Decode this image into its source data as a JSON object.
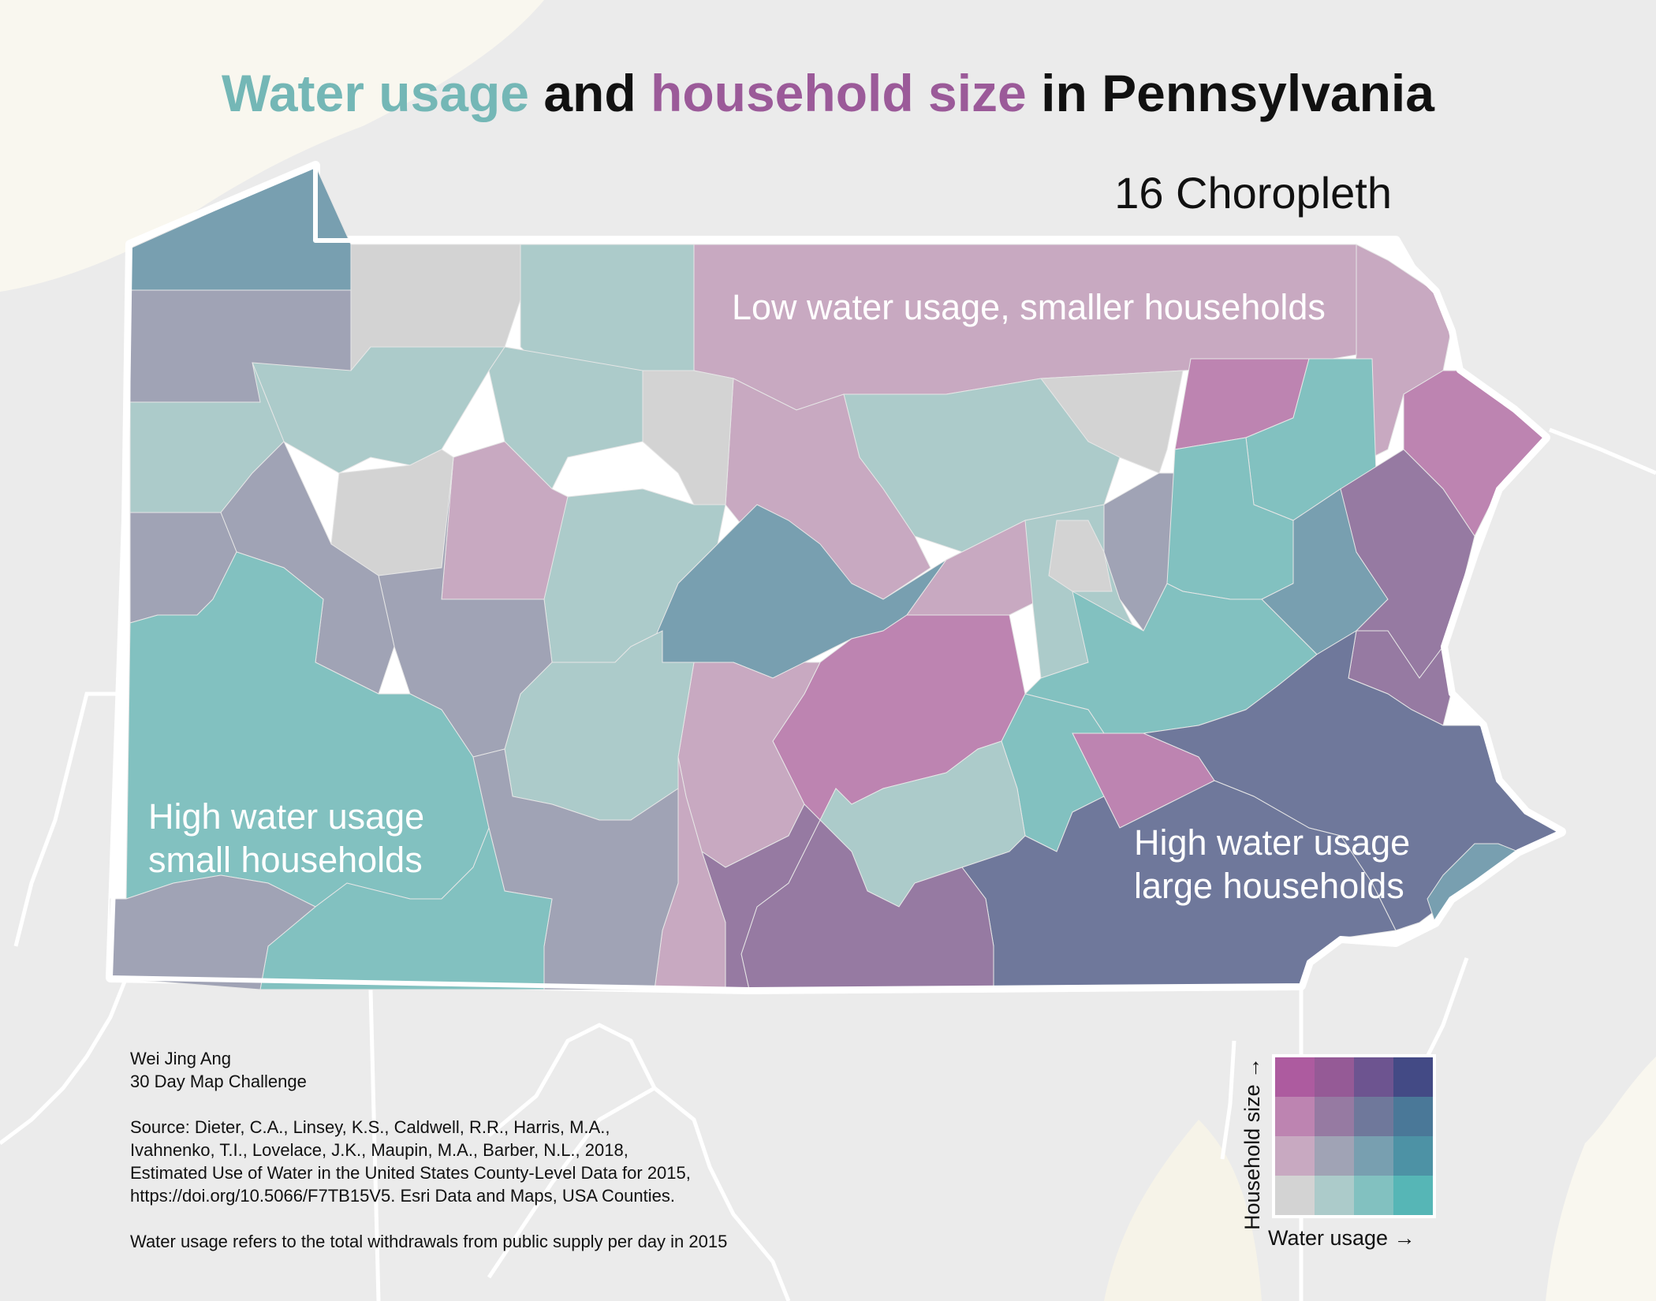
{
  "title": {
    "part1": "Water usage",
    "part2": " and ",
    "part3": "household size",
    "part4": " in Pennsylvania"
  },
  "subtitle": "16 Choropleth",
  "annotations": {
    "top": "Low water usage, smaller households",
    "left_line1": "High water usage",
    "left_line2": "small households",
    "right_line1": "High water usage",
    "right_line2": "large households"
  },
  "credits": {
    "author": "Wei Jing Ang",
    "challenge": "30 Day Map Challenge",
    "source_lines": [
      "Source: Dieter, C.A., Linsey, K.S., Caldwell, R.R., Harris, M.A.,",
      "Ivahnenko, T.I., Lovelace, J.K., Maupin, M.A., Barber, N.L., 2018,",
      "Estimated Use of Water in the United States County-Level Data for 2015,",
      "https://doi.org/10.5066/F7TB15V5. Esri Data and Maps, USA Counties."
    ],
    "note": "Water usage refers to the total withdrawals from public supply per day in 2015"
  },
  "legend": {
    "x_label": "Water usage →",
    "y_label": "Household size →",
    "colors": [
      [
        "#ad5b9f",
        "#955a96",
        "#6d5490",
        "#434a85"
      ],
      [
        "#bd84b1",
        "#967aa2",
        "#6f789b",
        "#4a7898"
      ],
      [
        "#c8a9c1",
        "#a0a3b5",
        "#789fb0",
        "#4d92a5"
      ],
      [
        "#d3d3d3",
        "#accbca",
        "#82c1c0",
        "#56b6b6"
      ]
    ]
  },
  "colors": {
    "background": "#ebebeb",
    "land_beige": "#f9f7ef",
    "border": "#ffffff",
    "water_color": "#74b7b6",
    "household_color": "#9b5a99",
    "c00": "#d3d3d3",
    "c10": "#accbca",
    "c20": "#82c1c0",
    "c01": "#c8a9c1",
    "c11": "#a0a3b5",
    "c21": "#789fb0",
    "c02": "#bd84b1",
    "c12": "#967aa2",
    "c22": "#6f789b"
  }
}
